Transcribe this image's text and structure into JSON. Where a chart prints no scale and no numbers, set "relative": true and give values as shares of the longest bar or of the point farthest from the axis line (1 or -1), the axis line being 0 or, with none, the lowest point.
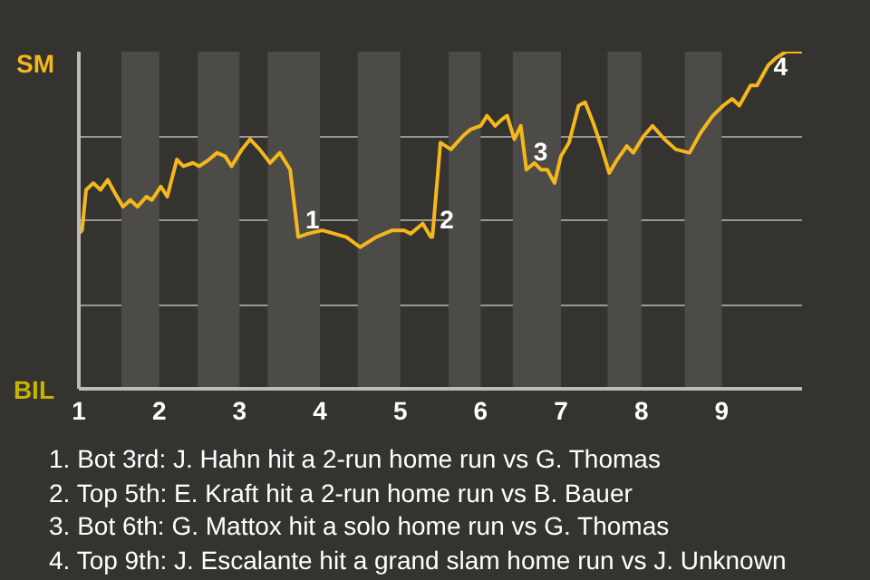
{
  "chart_data": {
    "type": "line",
    "relative": true,
    "x": [
      1.0,
      1.04,
      1.09,
      1.18,
      1.27,
      1.36,
      1.45,
      1.55,
      1.64,
      1.73,
      1.84,
      1.91,
      2.02,
      2.1,
      2.22,
      2.3,
      2.42,
      2.5,
      2.62,
      2.72,
      2.82,
      2.9,
      3.03,
      3.13,
      3.25,
      3.38,
      3.5,
      3.63,
      3.73,
      3.85,
      4.03,
      4.33,
      4.5,
      4.7,
      4.9,
      5.05,
      5.13,
      5.28,
      5.38,
      5.4,
      5.5,
      5.63,
      5.78,
      5.88,
      6.0,
      6.08,
      6.18,
      6.27,
      6.33,
      6.42,
      6.5,
      6.57,
      6.67,
      6.75,
      6.83,
      6.92,
      7.0,
      7.1,
      7.22,
      7.3,
      7.4,
      7.5,
      7.6,
      7.7,
      7.82,
      7.9,
      8.03,
      8.14,
      8.29,
      8.43,
      8.6,
      8.74,
      8.89,
      9.02,
      9.13,
      9.22,
      9.36,
      9.44,
      9.58,
      9.67,
      9.8,
      10.0
    ],
    "series": [
      {
        "color": "#f5b81c",
        "values": [
          0.46,
          0.47,
          0.59,
          0.61,
          0.59,
          0.62,
          0.58,
          0.54,
          0.56,
          0.54,
          0.57,
          0.56,
          0.6,
          0.57,
          0.68,
          0.66,
          0.67,
          0.66,
          0.68,
          0.7,
          0.69,
          0.66,
          0.71,
          0.74,
          0.71,
          0.67,
          0.7,
          0.65,
          0.45,
          0.46,
          0.47,
          0.45,
          0.42,
          0.45,
          0.47,
          0.47,
          0.46,
          0.49,
          0.45,
          0.45,
          0.73,
          0.71,
          0.75,
          0.77,
          0.78,
          0.81,
          0.78,
          0.8,
          0.81,
          0.74,
          0.78,
          0.65,
          0.67,
          0.65,
          0.65,
          0.61,
          0.69,
          0.73,
          0.84,
          0.85,
          0.79,
          0.72,
          0.64,
          0.68,
          0.72,
          0.7,
          0.75,
          0.78,
          0.74,
          0.71,
          0.7,
          0.76,
          0.81,
          0.84,
          0.86,
          0.84,
          0.9,
          0.9,
          0.96,
          0.98,
          1.0,
          1.0
        ]
      }
    ],
    "xlim": [
      1,
      10
    ],
    "xticks": [
      1,
      2,
      3,
      4,
      5,
      6,
      7,
      8,
      9
    ],
    "grid": "y",
    "line_style": "solid",
    "bands": [
      {
        "axis": "x",
        "from": 1.53,
        "to": 2,
        "color": "#4d4b48"
      },
      {
        "axis": "x",
        "from": 2.48,
        "to": 3,
        "color": "#4d4b48"
      },
      {
        "axis": "x",
        "from": 3.35,
        "to": 4,
        "color": "#4d4b48"
      },
      {
        "axis": "x",
        "from": 4.47,
        "to": 5,
        "color": "#4d4b48"
      },
      {
        "axis": "x",
        "from": 5.6,
        "to": 6,
        "color": "#4d4b48"
      },
      {
        "axis": "x",
        "from": 6.4,
        "to": 7,
        "color": "#4d4b48"
      },
      {
        "axis": "x",
        "from": 7.58,
        "to": 8,
        "color": "#4d4b48"
      },
      {
        "axis": "x",
        "from": 8.54,
        "to": 9,
        "color": "#4d4b48"
      }
    ],
    "annotations": [
      {
        "text": "1",
        "x": 3.73,
        "y": 0.45
      },
      {
        "text": "2",
        "x": 5.4,
        "y": 0.45
      },
      {
        "text": "3",
        "x": 6.57,
        "y": 0.65
      },
      {
        "text": "4",
        "x": 9.8,
        "y": 1.0
      },
      "SM",
      "BIL",
      "1. Bot 3rd: J. Hahn hit a 2-run home run vs G. Thomas",
      "2. Top 5th: E. Kraft hit a 2-run home run vs B. Bauer",
      "3. Bot 6th: G. Mattox hit a solo home run vs G. Thomas",
      "4. Top 9th: J. Escalante hit a grand slam home run vs J. Unknown"
    ]
  }
}
